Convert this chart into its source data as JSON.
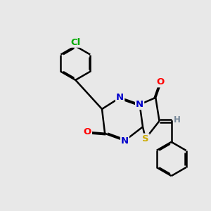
{
  "bg_color": "#e8e8e8",
  "atom_colors": {
    "C": "#000000",
    "N": "#0000cc",
    "O": "#ff0000",
    "S": "#ccaa00",
    "Cl": "#00aa00",
    "H": "#778899"
  },
  "bond_color": "#000000",
  "bond_width": 1.8,
  "dbo": 0.06,
  "figsize": [
    3.0,
    3.0
  ],
  "dpi": 100
}
